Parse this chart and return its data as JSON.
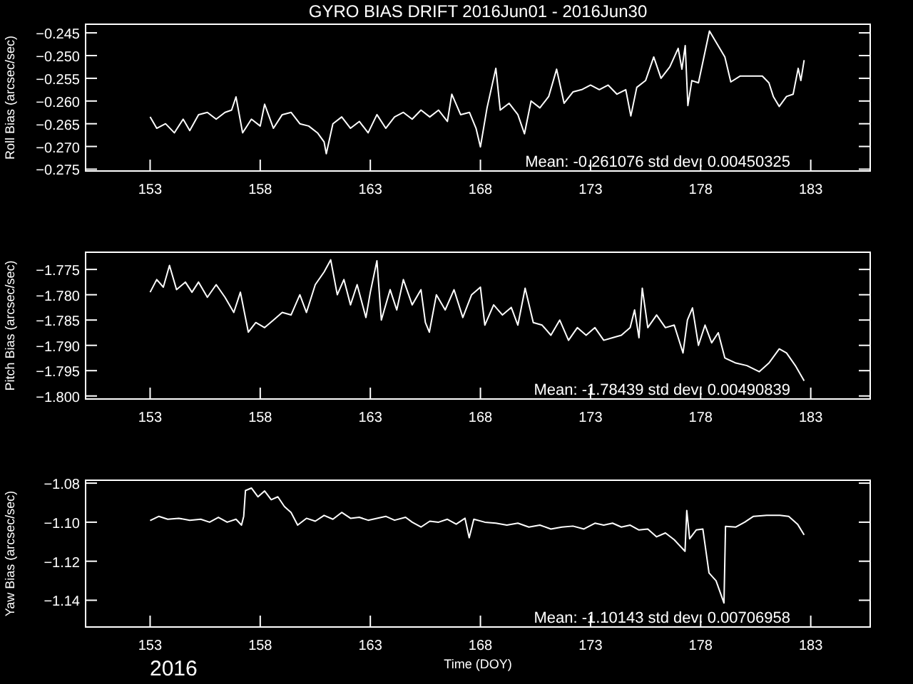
{
  "chart_data": [
    {
      "type": "line",
      "title": "GYRO BIAS DRIFT 2016Jun01 - 2016Jun30",
      "ylabel": "Roll Bias (arcsec/sec)",
      "xlim": [
        150.07,
        185.7
      ],
      "xticks": [
        153,
        158,
        163,
        168,
        173,
        178,
        183
      ],
      "ylim": [
        -0.2754,
        -0.2431
      ],
      "yticks": [
        {
          "value": -0.245,
          "label": "−0.245"
        },
        {
          "value": -0.25,
          "label": "−0.250"
        },
        {
          "value": -0.255,
          "label": "−0.255"
        },
        {
          "value": -0.26,
          "label": "−0.260"
        },
        {
          "value": -0.265,
          "label": "−0.265"
        },
        {
          "value": -0.27,
          "label": "−0.270"
        },
        {
          "value": -0.275,
          "label": "−0.275"
        }
      ],
      "annotations": [
        "Mean: -0.261076 std dev: 0.00450325"
      ],
      "series": [
        {
          "color": "#ffffff",
          "x": [
            153.0,
            153.3,
            153.7,
            154.1,
            154.5,
            154.8,
            155.2,
            155.6,
            156.0,
            156.4,
            156.7,
            156.9,
            157.2,
            157.6,
            158.0,
            158.2,
            158.6,
            159.0,
            159.4,
            159.8,
            160.2,
            160.6,
            160.9,
            161.0,
            161.3,
            161.7,
            162.1,
            162.5,
            162.9,
            163.3,
            163.7,
            164.1,
            164.5,
            164.9,
            165.3,
            165.7,
            166.1,
            166.5,
            166.7,
            167.1,
            167.5,
            167.8,
            168.0,
            168.3,
            168.7,
            168.9,
            169.3,
            169.7,
            170.0,
            170.3,
            170.7,
            171.1,
            171.46,
            171.8,
            172.2,
            172.6,
            173.0,
            173.4,
            173.8,
            174.2,
            174.6,
            174.83,
            175.1,
            175.5,
            175.87,
            176.2,
            176.6,
            176.98,
            177.15,
            177.3,
            177.42,
            177.6,
            177.9,
            178.4,
            179.1,
            179.37,
            179.8,
            180.3,
            180.8,
            181.1,
            181.3,
            181.57,
            181.9,
            182.2,
            182.43,
            182.55,
            182.7
          ],
          "values": [
            -0.2635,
            -0.266,
            -0.265,
            -0.267,
            -0.264,
            -0.2665,
            -0.263,
            -0.2625,
            -0.264,
            -0.2625,
            -0.262,
            -0.2591,
            -0.267,
            -0.264,
            -0.2655,
            -0.2607,
            -0.266,
            -0.263,
            -0.2625,
            -0.265,
            -0.2655,
            -0.267,
            -0.269,
            -0.2716,
            -0.265,
            -0.2635,
            -0.266,
            -0.2645,
            -0.267,
            -0.263,
            -0.266,
            -0.2635,
            -0.2625,
            -0.264,
            -0.262,
            -0.2635,
            -0.262,
            -0.2645,
            -0.2585,
            -0.263,
            -0.2625,
            -0.266,
            -0.2701,
            -0.2615,
            -0.2528,
            -0.262,
            -0.2605,
            -0.263,
            -0.2672,
            -0.26,
            -0.2615,
            -0.259,
            -0.253,
            -0.2605,
            -0.258,
            -0.2575,
            -0.2565,
            -0.2575,
            -0.2565,
            -0.2585,
            -0.2575,
            -0.2633,
            -0.257,
            -0.2555,
            -0.2503,
            -0.255,
            -0.2525,
            -0.2484,
            -0.253,
            -0.2478,
            -0.261,
            -0.2555,
            -0.256,
            -0.2446,
            -0.2503,
            -0.2558,
            -0.2545,
            -0.2545,
            -0.2545,
            -0.256,
            -0.259,
            -0.2612,
            -0.259,
            -0.2585,
            -0.2528,
            -0.2555,
            -0.251
          ]
        }
      ]
    },
    {
      "type": "line",
      "ylabel": "Pitch Bias (arcsec/sec)",
      "xlim": [
        150.07,
        185.7
      ],
      "xticks": [
        153,
        158,
        163,
        168,
        173,
        178,
        183
      ],
      "ylim": [
        -1.8006,
        -1.7716
      ],
      "yticks": [
        {
          "value": -1.775,
          "label": "−1.775"
        },
        {
          "value": -1.78,
          "label": "−1.780"
        },
        {
          "value": -1.785,
          "label": "−1.785"
        },
        {
          "value": -1.79,
          "label": "−1.790"
        },
        {
          "value": -1.795,
          "label": "−1.795"
        },
        {
          "value": -1.8,
          "label": "−1.800"
        }
      ],
      "annotations": [
        "Mean: -1.78439 std dev: 0.00490839"
      ],
      "series": [
        {
          "color": "#ffffff",
          "x": [
            153.0,
            153.3,
            153.6,
            153.88,
            154.2,
            154.6,
            154.9,
            155.2,
            155.6,
            156.0,
            156.4,
            156.8,
            157.1,
            157.46,
            157.8,
            158.2,
            158.6,
            159.0,
            159.4,
            159.8,
            160.1,
            160.5,
            160.9,
            161.2,
            161.5,
            161.8,
            162.1,
            162.4,
            162.8,
            163.0,
            163.3,
            163.5,
            163.9,
            164.2,
            164.5,
            164.9,
            165.3,
            165.5,
            165.68,
            166.0,
            166.4,
            166.8,
            167.2,
            167.6,
            168.0,
            168.2,
            168.6,
            169.0,
            169.4,
            169.7,
            170.03,
            170.4,
            170.8,
            171.2,
            171.6,
            172.0,
            172.4,
            172.8,
            173.2,
            173.6,
            174.0,
            174.4,
            174.8,
            175.0,
            175.2,
            175.35,
            175.6,
            176.0,
            176.4,
            176.8,
            177.2,
            177.4,
            177.63,
            177.9,
            178.2,
            178.5,
            178.8,
            179.1,
            179.6,
            180.1,
            180.66,
            181.1,
            181.57,
            181.9,
            182.3,
            182.7
          ],
          "values": [
            -1.7795,
            -1.777,
            -1.7785,
            -1.7742,
            -1.779,
            -1.7775,
            -1.7795,
            -1.7775,
            -1.7805,
            -1.778,
            -1.7805,
            -1.7835,
            -1.7795,
            -1.7874,
            -1.7855,
            -1.7865,
            -1.785,
            -1.7835,
            -1.784,
            -1.78,
            -1.7835,
            -1.778,
            -1.7755,
            -1.7731,
            -1.78,
            -1.777,
            -1.782,
            -1.778,
            -1.7845,
            -1.7795,
            -1.7733,
            -1.785,
            -1.779,
            -1.783,
            -1.777,
            -1.782,
            -1.779,
            -1.7855,
            -1.7874,
            -1.78,
            -1.783,
            -1.779,
            -1.7845,
            -1.78,
            -1.7785,
            -1.786,
            -1.782,
            -1.784,
            -1.7825,
            -1.786,
            -1.7787,
            -1.7855,
            -1.786,
            -1.788,
            -1.785,
            -1.789,
            -1.7865,
            -1.788,
            -1.7865,
            -1.789,
            -1.7885,
            -1.788,
            -1.7865,
            -1.783,
            -1.7885,
            -1.7787,
            -1.7865,
            -1.784,
            -1.7865,
            -1.786,
            -1.7915,
            -1.785,
            -1.7826,
            -1.79,
            -1.786,
            -1.7895,
            -1.7875,
            -1.7925,
            -1.7935,
            -1.794,
            -1.7952,
            -1.7935,
            -1.7907,
            -1.7915,
            -1.794,
            -1.797
          ]
        }
      ]
    },
    {
      "type": "line",
      "ylabel": "Yaw Bias (arcsec/sec)",
      "xlabel": "Time (DOY)",
      "xlim": [
        150.07,
        185.7
      ],
      "xticks": [
        153,
        158,
        163,
        168,
        173,
        178,
        183
      ],
      "ylim": [
        -1.1537,
        -1.0785
      ],
      "yticks": [
        {
          "value": -1.08,
          "label": "−1.08"
        },
        {
          "value": -1.1,
          "label": "−1.10"
        },
        {
          "value": -1.12,
          "label": "−1.12"
        },
        {
          "value": -1.14,
          "label": "−1.14"
        }
      ],
      "annotations": [
        "Mean: -1.10143 std dev: 0.00706958",
        "2016"
      ],
      "series": [
        {
          "color": "#ffffff",
          "x": [
            153.0,
            153.4,
            153.8,
            154.3,
            154.8,
            155.3,
            155.7,
            156.1,
            156.5,
            156.9,
            157.15,
            157.25,
            157.33,
            157.6,
            157.9,
            158.2,
            158.5,
            158.8,
            159.1,
            159.4,
            159.7,
            160.1,
            160.5,
            160.9,
            161.3,
            161.7,
            162.1,
            162.5,
            162.9,
            163.3,
            163.7,
            164.1,
            164.6,
            164.9,
            165.3,
            165.7,
            166.1,
            166.5,
            166.9,
            167.3,
            167.49,
            167.7,
            168.2,
            168.7,
            169.2,
            169.7,
            170.2,
            170.7,
            171.2,
            171.7,
            172.2,
            172.7,
            173.2,
            173.6,
            174.0,
            174.4,
            174.8,
            175.2,
            175.6,
            176.0,
            176.4,
            176.8,
            177.29,
            177.37,
            177.5,
            177.8,
            178.1,
            178.38,
            178.7,
            179.06,
            179.13,
            179.6,
            180.0,
            180.4,
            181.0,
            181.6,
            182.0,
            182.4,
            182.7
          ],
          "values": [
            -1.0992,
            -1.097,
            -1.0985,
            -1.098,
            -1.099,
            -1.0985,
            -1.1,
            -1.0975,
            -1.1,
            -1.0985,
            -1.1015,
            -1.097,
            -1.0838,
            -1.0825,
            -1.087,
            -1.084,
            -1.0885,
            -1.087,
            -1.092,
            -1.095,
            -1.1015,
            -1.098,
            -1.0995,
            -1.0965,
            -1.0985,
            -1.095,
            -1.098,
            -1.0975,
            -1.099,
            -1.098,
            -1.097,
            -1.099,
            -1.0975,
            -1.1,
            -1.1025,
            -1.0995,
            -1.1,
            -1.0985,
            -1.101,
            -1.098,
            -1.108,
            -1.0985,
            -1.1,
            -1.1005,
            -1.1015,
            -1.1005,
            -1.1025,
            -1.1015,
            -1.1035,
            -1.1025,
            -1.102,
            -1.1035,
            -1.1005,
            -1.1015,
            -1.1005,
            -1.1025,
            -1.1015,
            -1.104,
            -1.1035,
            -1.1075,
            -1.1055,
            -1.109,
            -1.1149,
            -1.094,
            -1.1085,
            -1.104,
            -1.1035,
            -1.126,
            -1.13,
            -1.1414,
            -1.1021,
            -1.1025,
            -1.1,
            -1.097,
            -1.0965,
            -1.0965,
            -1.097,
            -1.101,
            -1.1065
          ]
        }
      ]
    }
  ]
}
